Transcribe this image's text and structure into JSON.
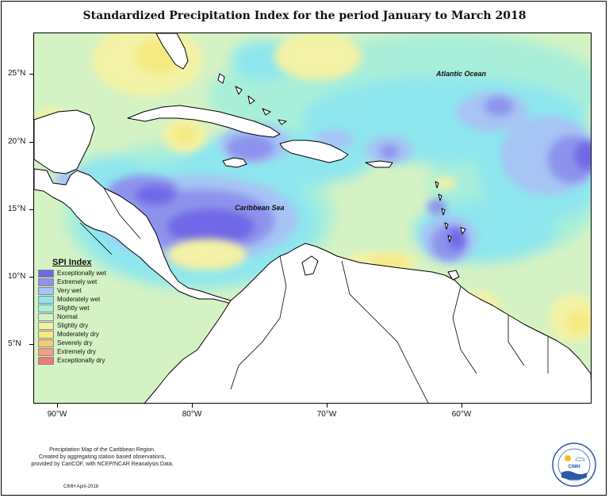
{
  "title": "Standardized Precipitation Index for the period January to March 2018",
  "labels": {
    "atlantic": "Atlantic Ocean",
    "caribbean": "Caribbean Sea"
  },
  "lat_ticks": [
    "25°N",
    "20°N",
    "15°N",
    "10°N",
    "5°N"
  ],
  "lon_ticks": [
    "90°W",
    "80°W",
    "70°W",
    "60°W"
  ],
  "legend": {
    "title": "SPI Index",
    "items": [
      {
        "label": "Exceptionally wet",
        "color": "#6f68e6"
      },
      {
        "label": "Extremely wet",
        "color": "#8d93ec"
      },
      {
        "label": "Very wet",
        "color": "#a6c4f4"
      },
      {
        "label": "Moderately wet",
        "color": "#8ee6ee"
      },
      {
        "label": "Slightly wet",
        "color": "#a9eed9"
      },
      {
        "label": "Normal",
        "color": "#d5f2c4"
      },
      {
        "label": "Slightly dry",
        "color": "#f3f2a6"
      },
      {
        "label": "Moderately dry",
        "color": "#f6e982"
      },
      {
        "label": "Severely dry",
        "color": "#f5c879"
      },
      {
        "label": "Extremely dry",
        "color": "#f39e7d"
      },
      {
        "label": "Exceptionally dry",
        "color": "#ee7a7a"
      }
    ]
  },
  "footer": {
    "line1": "Precipitation Map of the Caribbean Region.",
    "line2": "Created by aggregating station based observations,",
    "line3": "provided by CariCOF, with NCEP/NCAR Reanalysis Data.",
    "credit": "CIMH April-2018"
  },
  "logo": {
    "text": "CIMH"
  }
}
